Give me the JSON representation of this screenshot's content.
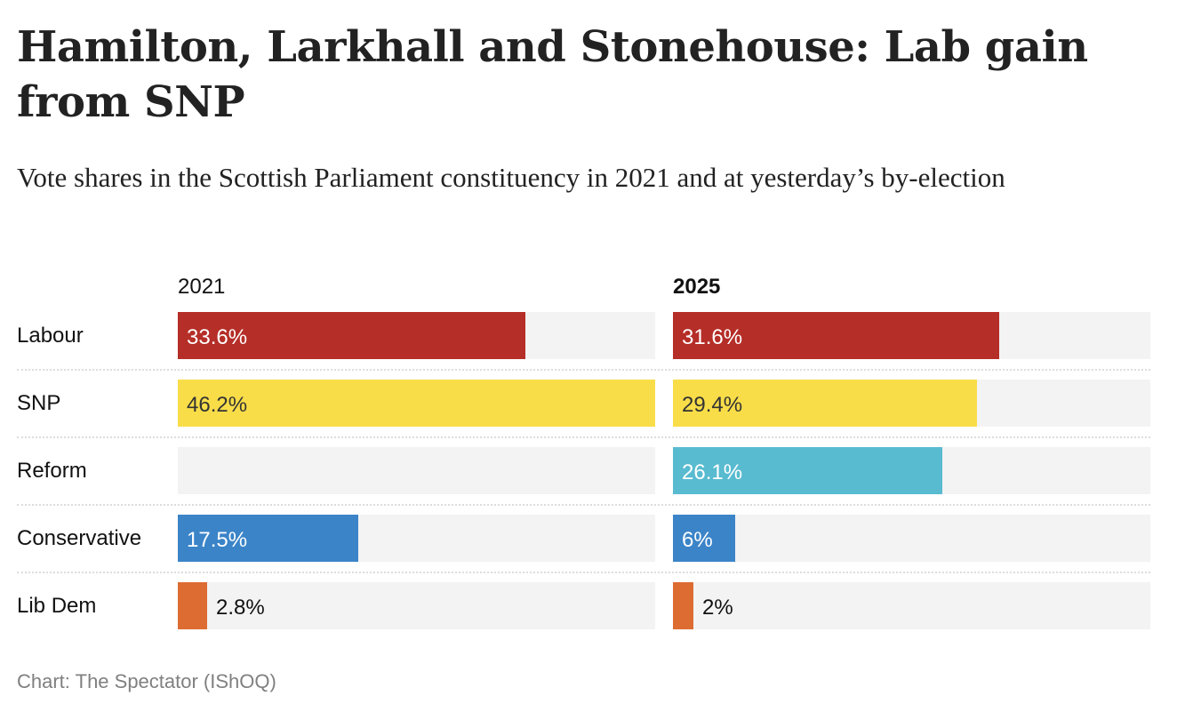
{
  "chart_data": {
    "type": "bar",
    "orientation": "horizontal",
    "title": "Hamilton, Larkhall and Stonehouse: Lab gain from SNP",
    "subtitle": "Vote shares in the Scottish Parliament constituency in 2021 and at yesterday’s by-election",
    "categories": [
      "Labour",
      "SNP",
      "Reform",
      "Conservative",
      "Lib Dem"
    ],
    "series": [
      {
        "name": "2021",
        "bold_header": false,
        "values": [
          33.6,
          46.2,
          null,
          17.5,
          2.8
        ],
        "labels": [
          "33.6%",
          "46.2%",
          "",
          "17.5%",
          "2.8%"
        ]
      },
      {
        "name": "2025",
        "bold_header": true,
        "values": [
          31.6,
          29.4,
          26.1,
          6,
          2
        ],
        "labels": [
          "31.6%",
          "29.4%",
          "26.1%",
          "6%",
          "2%"
        ]
      }
    ],
    "colors": {
      "Labour": "#b52e28",
      "SNP": "#f8dd49",
      "Reform": "#58bbd0",
      "Conservative": "#3b84c8",
      "Lib Dem": "#dd6c33"
    },
    "label_colors": {
      "Labour": "#ffffff",
      "SNP": "#333333",
      "Reform": "#ffffff",
      "Conservative": "#ffffff",
      "Lib Dem": "#111111"
    },
    "track_color": "#f3f3f3",
    "xlim": [
      0,
      46.2
    ],
    "grid": false,
    "legend": "none",
    "xlabel": "",
    "ylabel": ""
  },
  "source": "Chart: The Spectator (IShOQ)"
}
